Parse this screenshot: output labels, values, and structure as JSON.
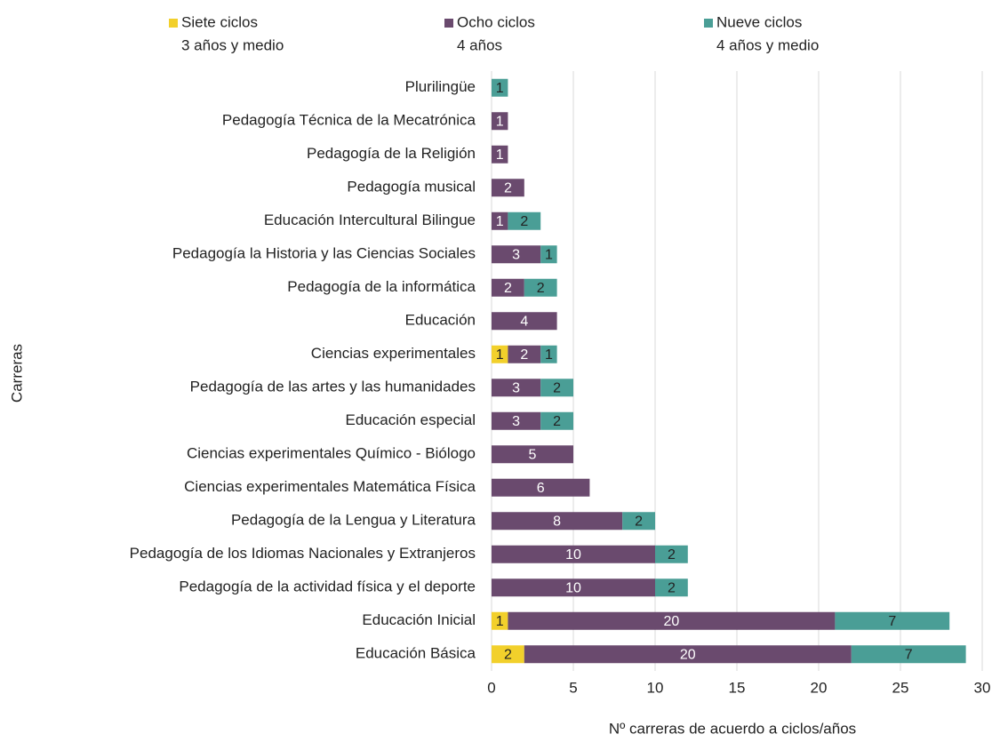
{
  "chart_data": {
    "type": "stacked-bar-horizontal",
    "xlabel": "Nº carreras de acuerdo a ciclos/años",
    "ylabel": "Carreras",
    "categories": [
      "Plurilingüe",
      "Pedagogía Técnica de la Mecatrónica",
      "Pedagogía de la Religión",
      "Pedagogía musical",
      "Educación Intercultural Bilingue",
      "Pedagogía la Historia y las Ciencias Sociales",
      "Pedagogía de la informática",
      "Educación",
      "Ciencias experimentales",
      "Pedagogía de las artes y las humanidades",
      "Educación especial",
      "Ciencias experimentales Químico - Biólogo",
      "Ciencias experimentales Matemática Física",
      "Pedagogía de la Lengua y Literatura",
      "Pedagogía de los Idiomas Nacionales y Extranjeros",
      "Pedagogía de la actividad física y el deporte",
      "Educación Inicial",
      "Educación Básica"
    ],
    "series": [
      {
        "name": "Siete ciclos",
        "sublabel": "3 años y medio",
        "color": "#f2d02b",
        "label_color": "#222222",
        "values": [
          null,
          null,
          null,
          null,
          null,
          null,
          null,
          null,
          1,
          null,
          null,
          null,
          null,
          null,
          null,
          null,
          1,
          2
        ]
      },
      {
        "name": "Ocho ciclos",
        "sublabel": "4 años",
        "color": "#6a4a6e",
        "label_color": "#ffffff",
        "values": [
          null,
          1,
          1,
          2,
          1,
          3,
          2,
          4,
          2,
          3,
          3,
          5,
          6,
          8,
          10,
          10,
          20,
          20
        ]
      },
      {
        "name": "Nueve ciclos",
        "sublabel": "4 años y medio",
        "color": "#4a9e96",
        "label_color": "#222222",
        "values": [
          1,
          null,
          null,
          null,
          2,
          1,
          2,
          null,
          1,
          2,
          2,
          null,
          null,
          2,
          2,
          2,
          7,
          7
        ]
      }
    ],
    "xlim": [
      0,
      30
    ],
    "xticks": [
      0,
      5,
      10,
      15,
      20,
      25,
      30
    ],
    "grid": true
  }
}
